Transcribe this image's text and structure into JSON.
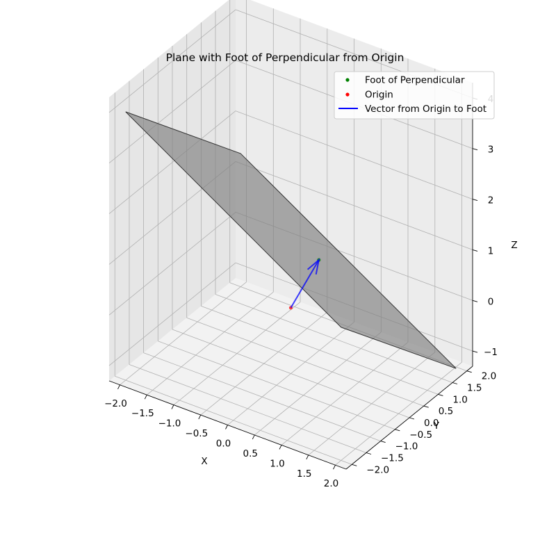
{
  "chart_data": {
    "type": "scatter",
    "subtype": "3d",
    "title": "Plane with Foot of Perpendicular from Origin",
    "xlabel": "X",
    "ylabel": "Y",
    "zlabel": "Z",
    "xlim": [
      -2.2,
      2.2
    ],
    "ylim": [
      -2.2,
      2.2
    ],
    "zlim": [
      -1.3,
      4.3
    ],
    "xticks": [
      -2.0,
      -1.5,
      -1.0,
      -0.5,
      0.0,
      0.5,
      1.0,
      1.5,
      2.0
    ],
    "xtick_labels": [
      "−2.0",
      "−1.5",
      "−1.0",
      "−0.5",
      "0.0",
      "0.5",
      "1.0",
      "1.5",
      "2.0"
    ],
    "yticks": [
      -2.0,
      -1.5,
      -1.0,
      -0.5,
      0.0,
      0.5,
      1.0,
      1.5,
      2.0
    ],
    "ytick_labels": [
      "−2.0",
      "−1.5",
      "−1.0",
      "−0.5",
      "0.0",
      "0.5",
      "1.0",
      "1.5",
      "2.0"
    ],
    "zticks": [
      -1,
      0,
      1,
      2,
      3,
      4
    ],
    "ztick_labels": [
      "−1",
      "0",
      "1",
      "2",
      "3",
      "4"
    ],
    "grid": true,
    "legend_position": "top-right",
    "plane": {
      "corners": [
        {
          "x": -2,
          "y": -2,
          "z": 4.0
        },
        {
          "x": 2,
          "y": -2,
          "z": 1.33
        },
        {
          "x": 2,
          "y": 2,
          "z": -1.33
        },
        {
          "x": -2,
          "y": 2,
          "z": 1.33
        }
      ],
      "color": "#808080",
      "edge_color": "#333333"
    },
    "series": [
      {
        "name": "Foot of Perpendicular",
        "kind": "point",
        "color": "#008000",
        "points": [
          {
            "x": 0.29,
            "y": 0.43,
            "z": 0.86
          }
        ]
      },
      {
        "name": "Origin",
        "kind": "point",
        "color": "#ff0000",
        "points": [
          {
            "x": 0,
            "y": 0,
            "z": 0
          }
        ]
      },
      {
        "name": "Vector from Origin to Foot",
        "kind": "arrow",
        "color": "#0000ff",
        "from": {
          "x": 0,
          "y": 0,
          "z": 0
        },
        "to": {
          "x": 0.29,
          "y": 0.43,
          "z": 0.86
        }
      }
    ]
  }
}
